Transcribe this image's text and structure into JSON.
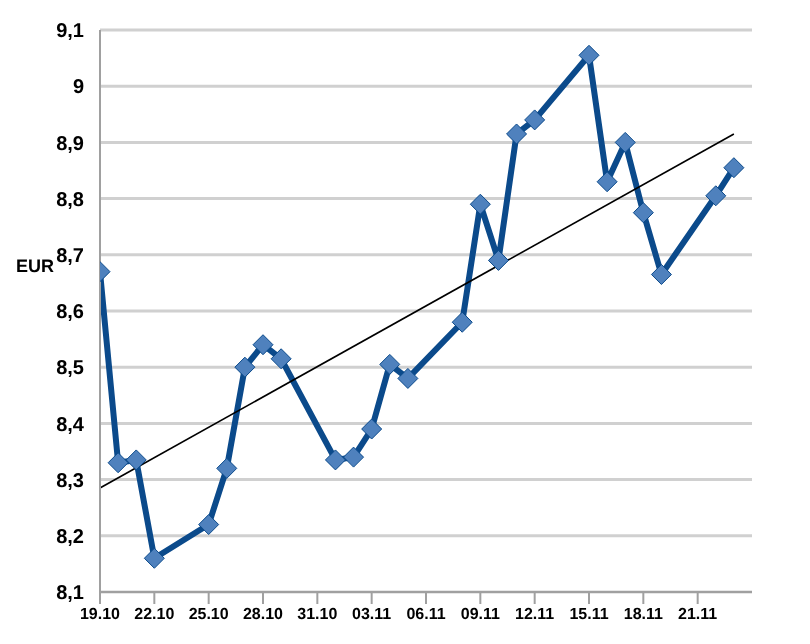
{
  "chart_data": {
    "type": "line",
    "ylabel": "EUR",
    "x": [
      "--10-19",
      "--10-20",
      "--10-21",
      "--10-22",
      "--10-25",
      "--10-26",
      "--10-27",
      "--10-28",
      "--10-29",
      "--11-01",
      "--11-02",
      "--11-03",
      "--11-04",
      "--11-05",
      "--11-08",
      "--11-09",
      "--11-10",
      "--11-11",
      "--11-12",
      "--11-15",
      "--11-16",
      "--11-17",
      "--11-18",
      "--11-19",
      "--11-22",
      "--11-23"
    ],
    "series": [
      {
        "color": "#0b4a8b",
        "marker": "diamond",
        "values": [
          8.67,
          8.33,
          8.335,
          8.16,
          8.22,
          8.32,
          8.5,
          8.54,
          8.515,
          8.335,
          8.34,
          8.39,
          8.505,
          8.48,
          8.58,
          8.79,
          8.69,
          8.915,
          8.94,
          9.055,
          8.83,
          8.9,
          8.775,
          8.665,
          8.805,
          8.855
        ]
      },
      {
        "type": "line",
        "color": "#000000",
        "marker": "none",
        "x": [
          "--10-19",
          "--11-23"
        ],
        "values": [
          8.285,
          8.915
        ]
      }
    ],
    "xlim": [
      "--10-19",
      "--11-24"
    ],
    "xticks": [
      {
        "value": "--10-19",
        "label": "19.10"
      },
      {
        "value": "--10-22",
        "label": "22.10"
      },
      {
        "value": "--10-25",
        "label": "25.10"
      },
      {
        "value": "--10-28",
        "label": "28.10"
      },
      {
        "value": "--10-31",
        "label": "31.10"
      },
      {
        "value": "--11-03",
        "label": "03.11"
      },
      {
        "value": "--11-06",
        "label": "06.11"
      },
      {
        "value": "--11-09",
        "label": "09.11"
      },
      {
        "value": "--11-12",
        "label": "12.11"
      },
      {
        "value": "--11-15",
        "label": "15.11"
      },
      {
        "value": "--11-18",
        "label": "18.11"
      },
      {
        "value": "--11-21",
        "label": "21.11"
      }
    ],
    "ylim": [
      8.1,
      9.1
    ],
    "yticks": [
      {
        "value": 8.1,
        "label": "8,1"
      },
      {
        "value": 8.2,
        "label": "8,2"
      },
      {
        "value": 8.3,
        "label": "8,3"
      },
      {
        "value": 8.4,
        "label": "8,4"
      },
      {
        "value": 8.5,
        "label": "8,5"
      },
      {
        "value": 8.6,
        "label": "8,6"
      },
      {
        "value": 8.7,
        "label": "8,7"
      },
      {
        "value": 8.8,
        "label": "8,8"
      },
      {
        "value": 8.9,
        "label": "8,9"
      },
      {
        "value": 9,
        "label": "9"
      },
      {
        "value": 9.1,
        "label": "9,1"
      }
    ],
    "grid": "y",
    "line_style": "solid"
  }
}
